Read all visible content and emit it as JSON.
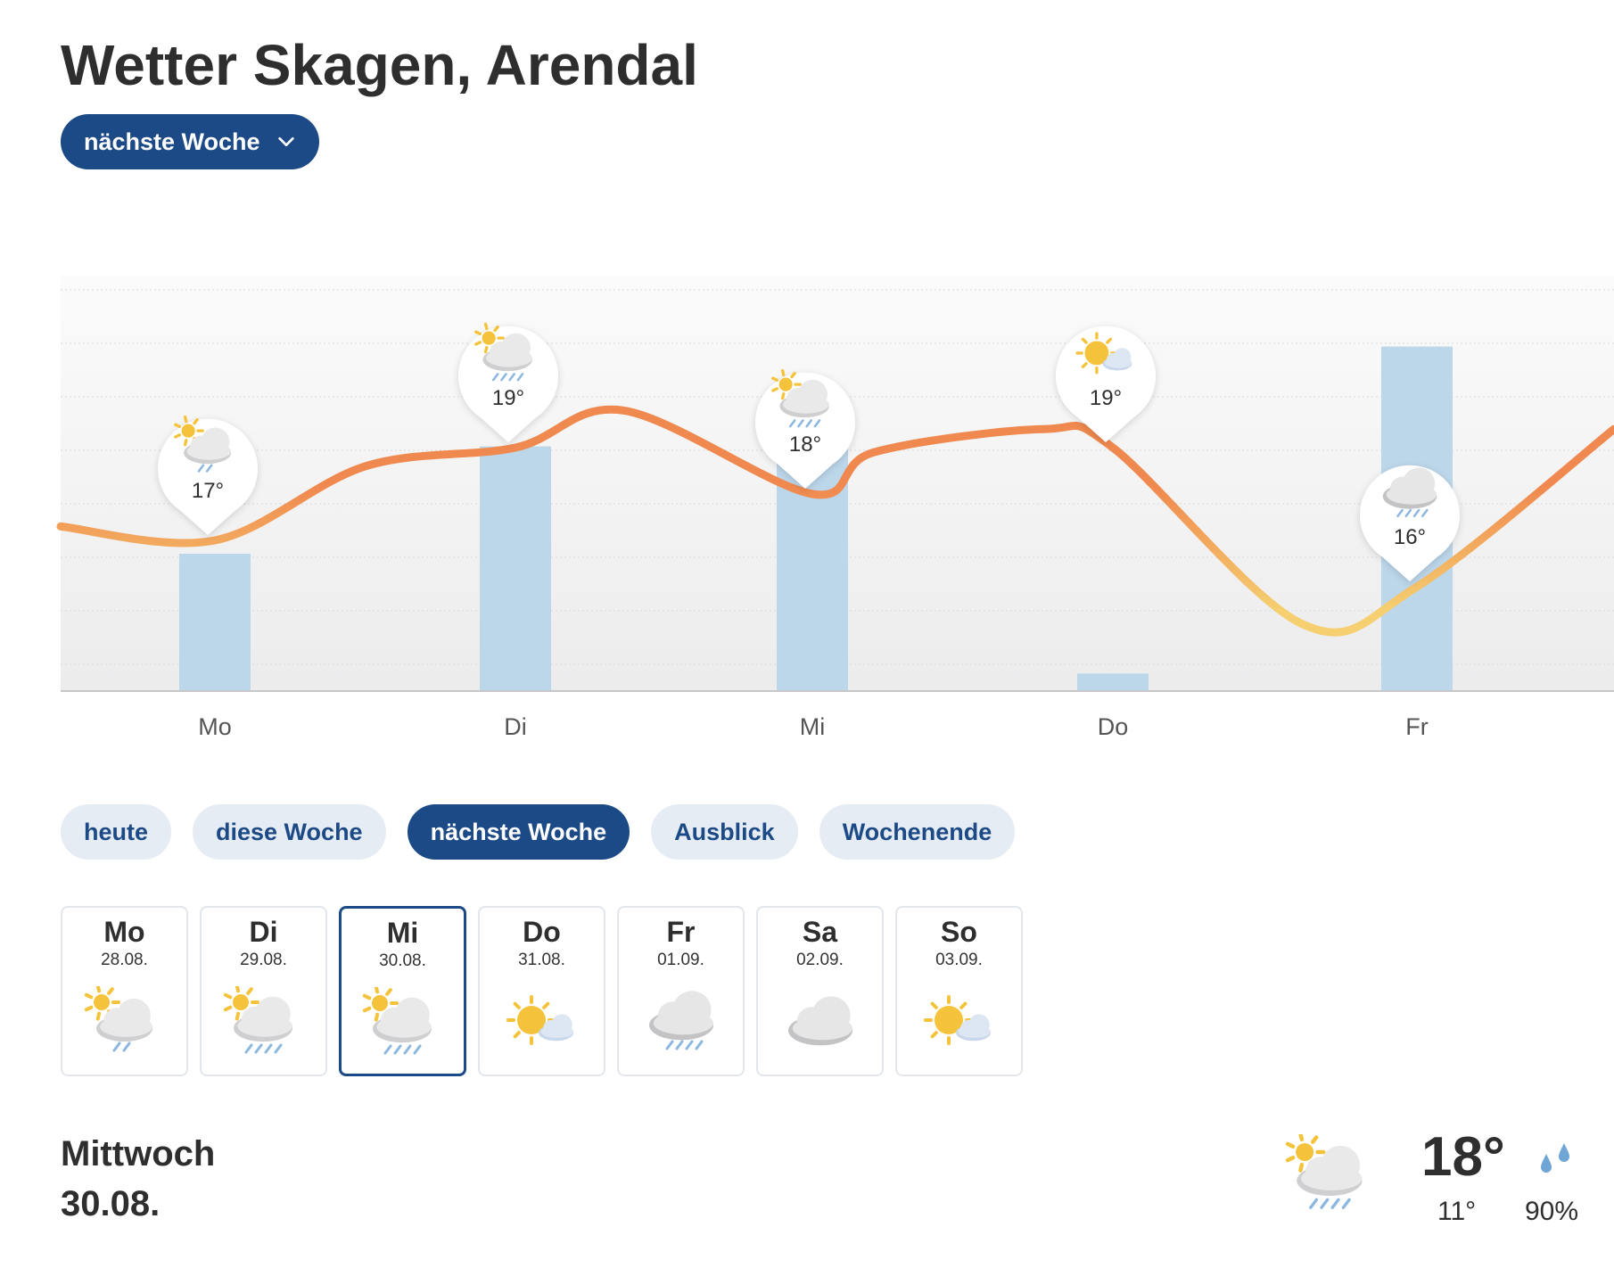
{
  "header": {
    "title": "Wetter Skagen, Arendal",
    "period_dropdown_label": "nächste Woche"
  },
  "chart_data": {
    "type": "line",
    "x": [
      "Mo",
      "Di",
      "Mi",
      "Do",
      "Fr"
    ],
    "series": [
      {
        "values": [
          17,
          19,
          18,
          19,
          16
        ],
        "kind": "line"
      },
      {
        "values": [
          0.55,
          0.98,
          1.15,
          0.07,
          1.38
        ],
        "kind": "bar"
      }
    ],
    "markers": [
      {
        "day": "Mo",
        "temp": "17°",
        "icon": "sun-cloud-light-rain-icon"
      },
      {
        "day": "Di",
        "temp": "19°",
        "icon": "sun-cloud-rain-icon"
      },
      {
        "day": "Mi",
        "temp": "18°",
        "icon": "sun-cloud-rain-icon"
      },
      {
        "day": "Do",
        "temp": "19°",
        "icon": "sun-cloud-icon"
      },
      {
        "day": "Fr",
        "temp": "16°",
        "icon": "cloud-rain-icon"
      }
    ],
    "grid": true,
    "colors": {
      "line_warm": "#f0894f",
      "line_cool": "#f5cf70",
      "bar": "#bcd6ea"
    }
  },
  "tabs": [
    {
      "label": "heute",
      "active": false
    },
    {
      "label": "diese Woche",
      "active": false
    },
    {
      "label": "nächste Woche",
      "active": true
    },
    {
      "label": "Ausblick",
      "active": false
    },
    {
      "label": "Wochenende",
      "active": false
    }
  ],
  "days": [
    {
      "name": "Mo",
      "date": "28.08.",
      "icon": "sun-cloud-light-rain-icon"
    },
    {
      "name": "Di",
      "date": "29.08.",
      "icon": "sun-cloud-rain-icon"
    },
    {
      "name": "Mi",
      "date": "30.08.",
      "icon": "sun-cloud-rain-icon",
      "selected": true
    },
    {
      "name": "Do",
      "date": "31.08.",
      "icon": "sun-cloud-icon"
    },
    {
      "name": "Fr",
      "date": "01.09.",
      "icon": "cloud-rain-icon"
    },
    {
      "name": "Sa",
      "date": "02.09.",
      "icon": "cloud-icon"
    },
    {
      "name": "So",
      "date": "03.09.",
      "icon": "sun-cloud-icon"
    }
  ],
  "detail": {
    "day": "Mittwoch",
    "date": "30.08.",
    "max_temp": "18°",
    "min_temp": "11°",
    "rain_probability": "90%",
    "icon": "sun-cloud-rain-icon"
  },
  "colors": {
    "primary": "#1c4a86",
    "tab_bg": "#e6ecf3",
    "sun": "#f5c33b"
  }
}
